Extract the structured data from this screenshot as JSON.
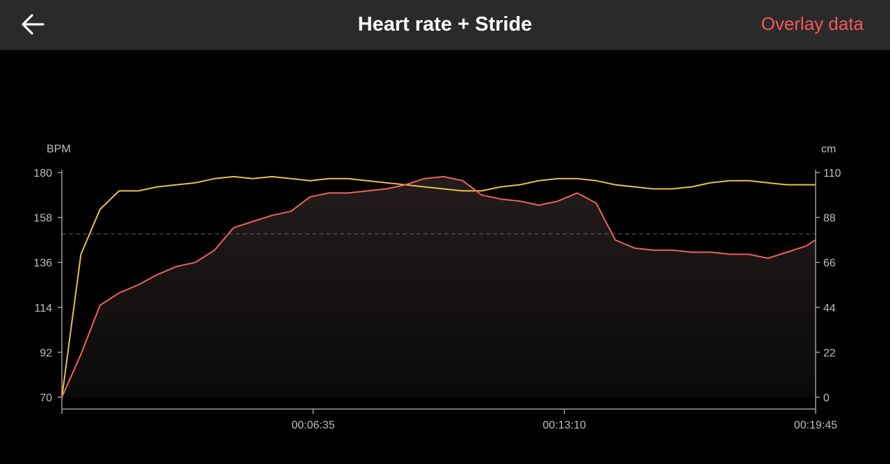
{
  "header": {
    "title": "Heart rate + Stride",
    "overlay_label": "Overlay data",
    "back_icon": "arrow-left-icon"
  },
  "colors": {
    "header_bg": "#2a2a2a",
    "background": "#000000",
    "accent": "#f25a55",
    "heart_rate_line": "#f06060",
    "stride_line": "#e8c24a",
    "axis": "#9e9e9e",
    "reference_line": "#666666"
  },
  "chart_data": {
    "type": "line",
    "left_axis": {
      "unit": "BPM",
      "ticks": [
        70,
        92,
        114,
        136,
        158,
        180
      ],
      "range": [
        70,
        180
      ]
    },
    "right_axis": {
      "unit": "cm",
      "ticks": [
        0,
        22,
        44,
        66,
        88,
        110
      ],
      "range": [
        0,
        110
      ]
    },
    "x_axis": {
      "ticks": [
        "00:06:35",
        "00:13:10",
        "00:19:45"
      ],
      "range": [
        "00:00:00",
        "00:19:45"
      ]
    },
    "grid": false,
    "reference_line_bpm": 150,
    "x_seconds": [
      0,
      30,
      60,
      90,
      120,
      150,
      180,
      210,
      240,
      270,
      300,
      330,
      360,
      390,
      420,
      450,
      480,
      510,
      540,
      570,
      600,
      630,
      660,
      690,
      720,
      750,
      780,
      810,
      840,
      870,
      900,
      930,
      960,
      990,
      1020,
      1050,
      1080,
      1110,
      1140,
      1170,
      1185
    ],
    "series": [
      {
        "axis": "left",
        "values": [
          70,
          91,
          115,
          121,
          125,
          130,
          134,
          136,
          142,
          153,
          156,
          159,
          161,
          168,
          170,
          170,
          171,
          172,
          174,
          177,
          178,
          176,
          169,
          167,
          166,
          164,
          166,
          170,
          165,
          147,
          143,
          142,
          142,
          141,
          141,
          140,
          140,
          138,
          141,
          144,
          147
        ]
      },
      {
        "axis": "right",
        "values": [
          0,
          70,
          92,
          101,
          101,
          103,
          104,
          105,
          107,
          108,
          107,
          108,
          107,
          106,
          107,
          107,
          106,
          105,
          104,
          103,
          102,
          101,
          101,
          103,
          104,
          106,
          107,
          107,
          106,
          104,
          103,
          102,
          102,
          103,
          105,
          106,
          106,
          105,
          104,
          104,
          104
        ]
      }
    ]
  }
}
